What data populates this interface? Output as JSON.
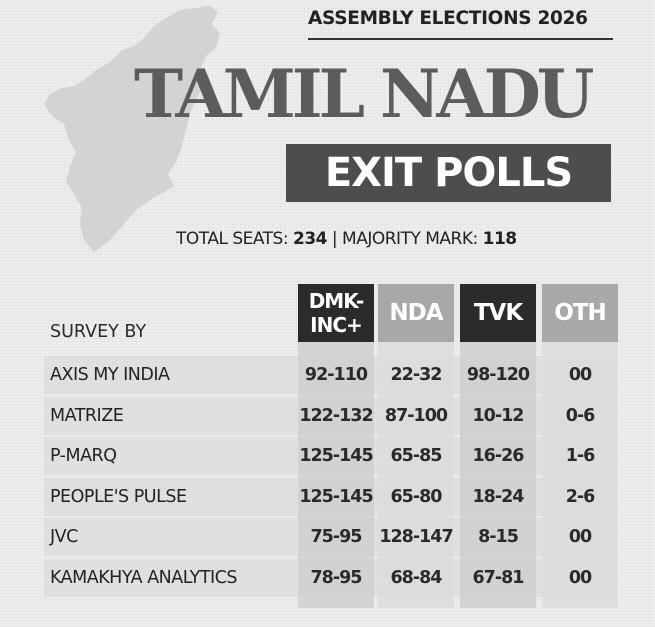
{
  "header": {
    "kicker": "ASSEMBLY ELECTIONS 2026",
    "title": "TAMIL NADU",
    "subtitle": "EXIT POLLS",
    "seats_label": "TOTAL SEATS:",
    "seats_value": "234",
    "separator": "|",
    "majority_label": "MAJORITY MARK:",
    "majority_value": "118"
  },
  "map": {
    "icon": "tamil-nadu-map-icon",
    "color": "#d3d3d3"
  },
  "table": {
    "survey_label": "SURVEY BY",
    "columns": [
      {
        "key": "dmk",
        "label": "DMK-\nINC+",
        "bg": "#2b2b2b",
        "fg": "#ffffff",
        "body_bg": "#cfcfcf"
      },
      {
        "key": "nda",
        "label": "NDA",
        "bg": "#a8a8a8",
        "fg": "#ffffff",
        "body_bg": "#dcdcdc"
      },
      {
        "key": "tvk",
        "label": "TVK",
        "bg": "#2b2b2b",
        "fg": "#ffffff",
        "body_bg": "#cfcfcf"
      },
      {
        "key": "oth",
        "label": "OTH",
        "bg": "#a8a8a8",
        "fg": "#ffffff",
        "body_bg": "#dcdcdc"
      }
    ],
    "rows": [
      {
        "survey": "AXIS MY INDIA",
        "values": [
          "92-110",
          "22-32",
          "98-120",
          "00"
        ]
      },
      {
        "survey": "MATRIZE",
        "values": [
          "122-132",
          "87-100",
          "10-12",
          "0-6"
        ]
      },
      {
        "survey": "P-MARQ",
        "values": [
          "125-145",
          "65-85",
          "16-26",
          "1-6"
        ]
      },
      {
        "survey": "PEOPLE'S PULSE",
        "values": [
          "125-145",
          "65-80",
          "18-24",
          "2-6"
        ]
      },
      {
        "survey": "JVC",
        "values": [
          "75-95",
          "128-147",
          "8-15",
          "00"
        ]
      },
      {
        "survey": "KAMAKHYA ANALYTICS",
        "values": [
          "78-95",
          "68-84",
          "67-81",
          "00"
        ]
      }
    ]
  }
}
